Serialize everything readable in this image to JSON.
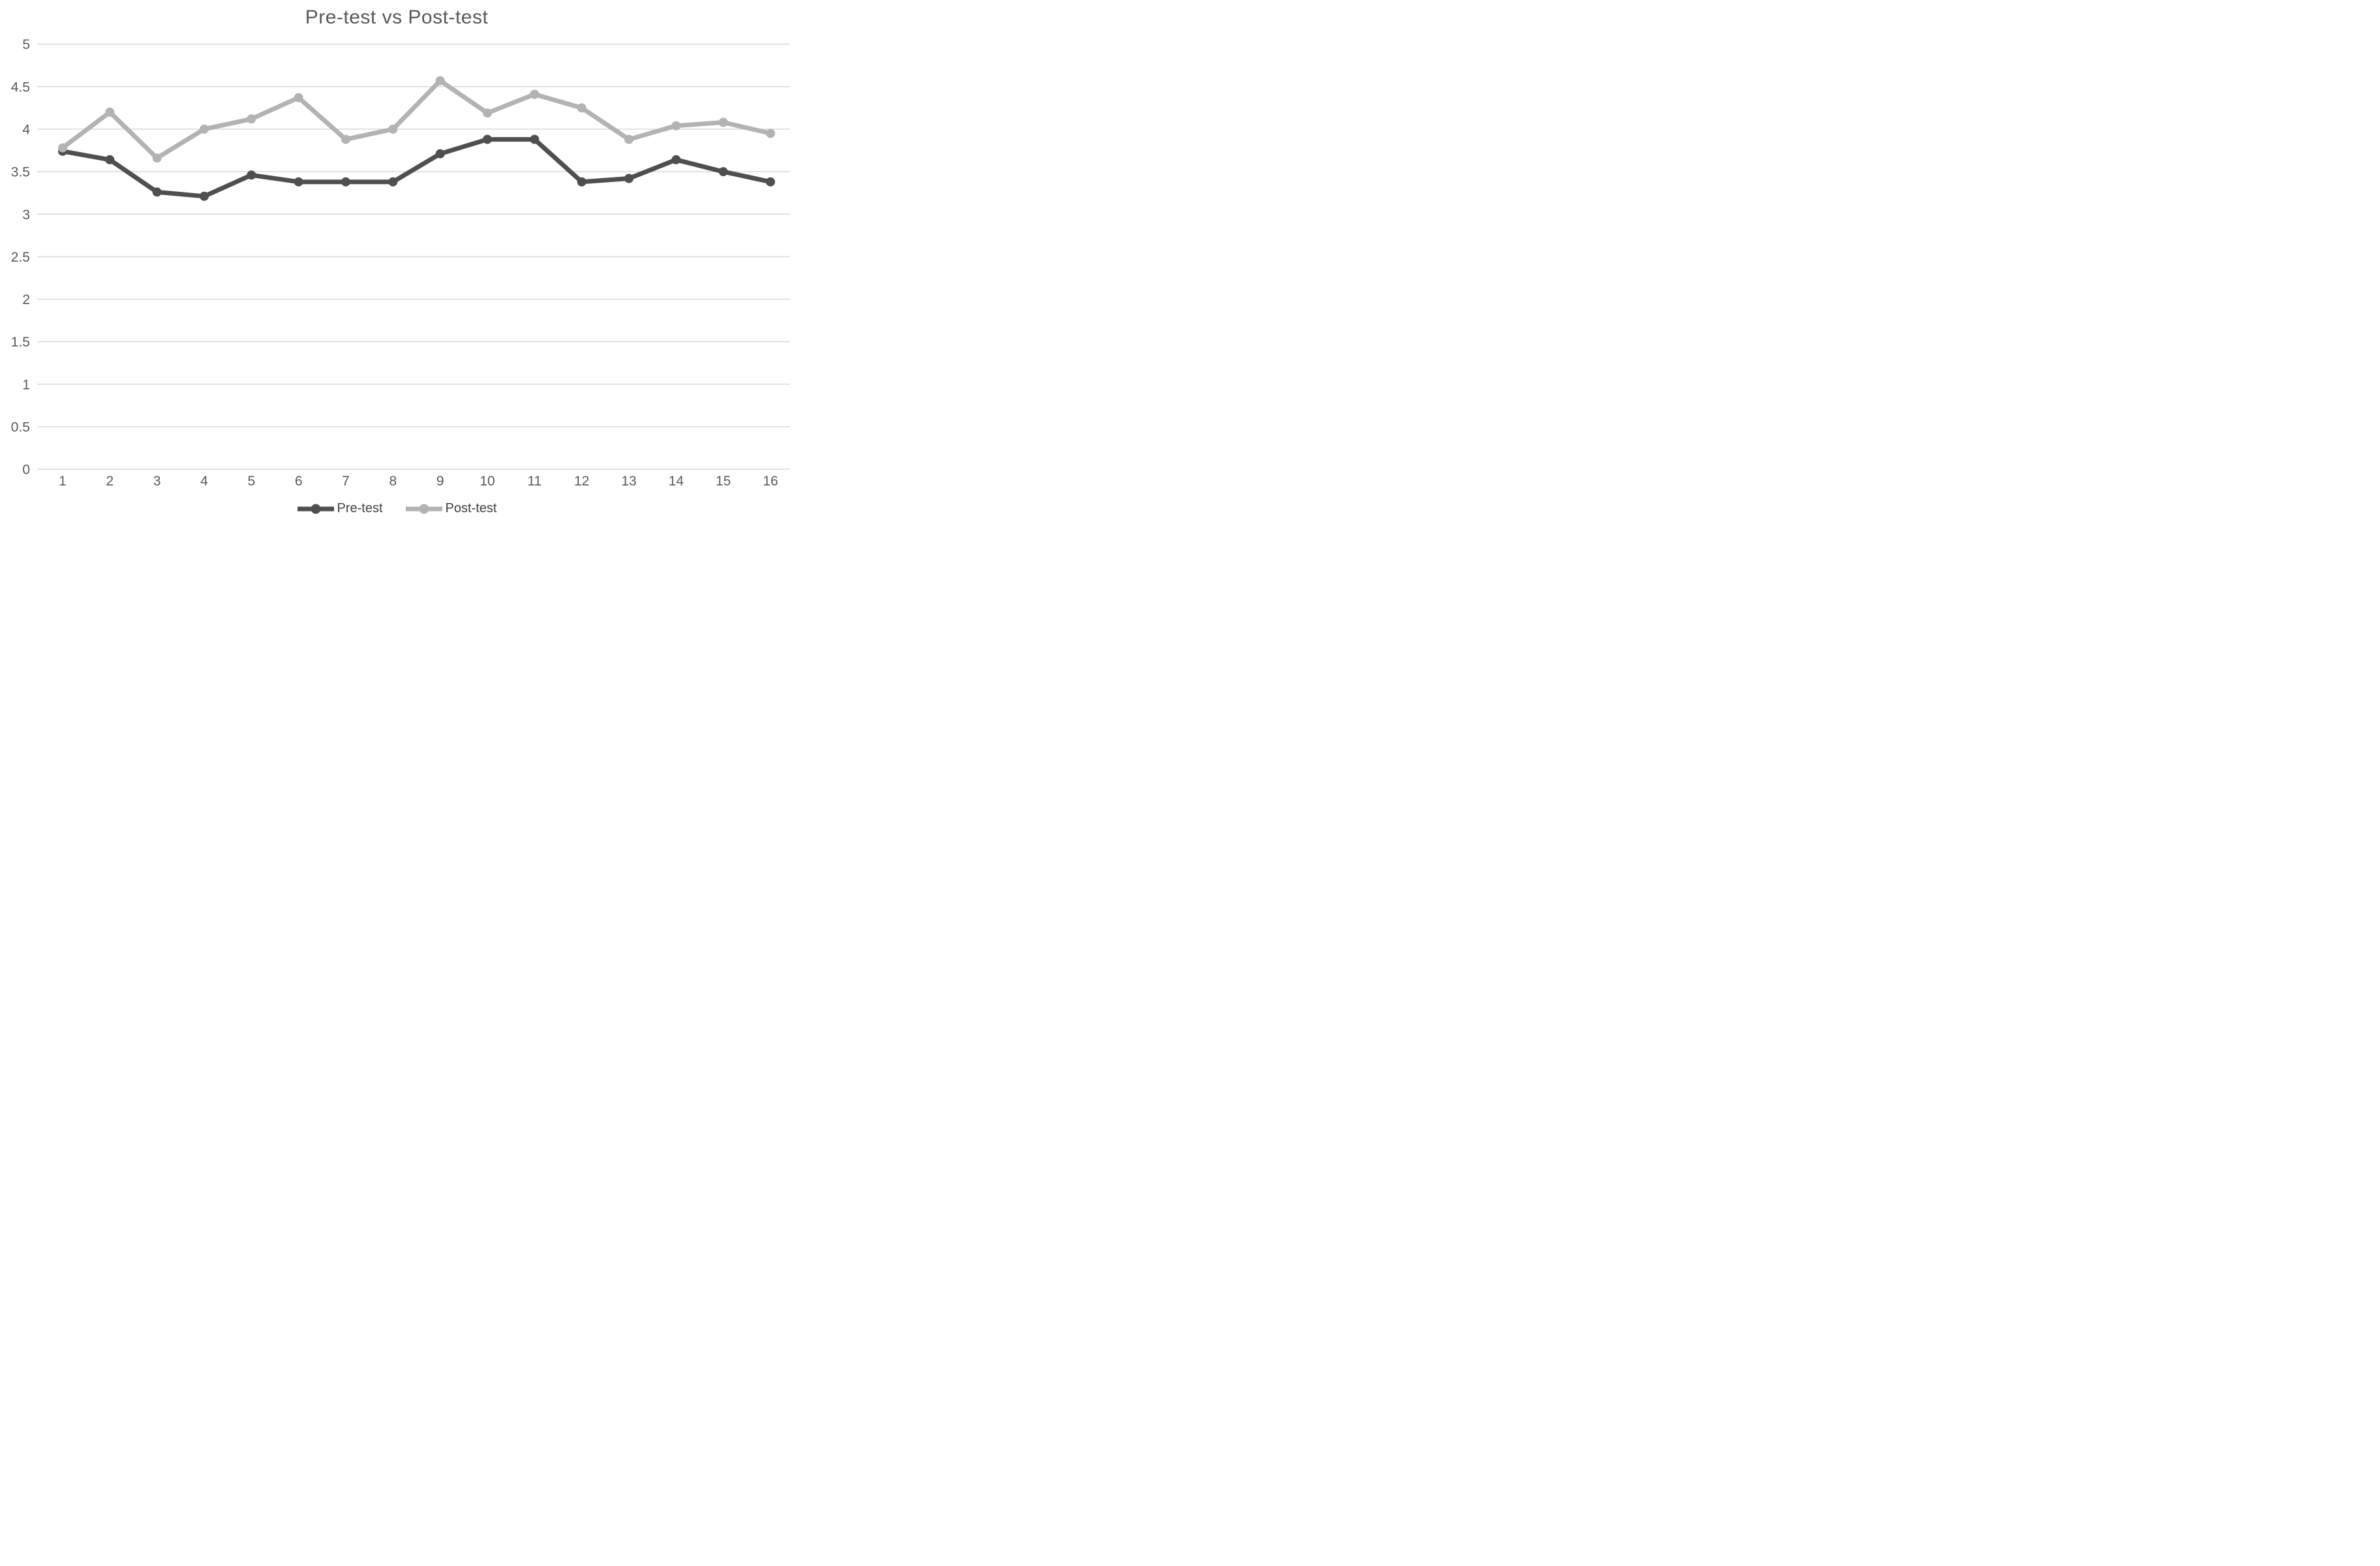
{
  "page": {
    "background": "#FFFFFF"
  },
  "chart_data": {
    "type": "line",
    "title": "Pre-test vs Post-test",
    "title_color": "#595959",
    "x": [
      1,
      2,
      3,
      4,
      5,
      6,
      7,
      8,
      9,
      10,
      11,
      12,
      13,
      14,
      15,
      16
    ],
    "series": [
      {
        "name": "Pre-test",
        "color": "#4F4F4F",
        "values": [
          3.74,
          3.64,
          3.26,
          3.21,
          3.46,
          3.38,
          3.38,
          3.38,
          3.71,
          3.88,
          3.88,
          3.38,
          3.42,
          3.64,
          3.5,
          3.38
        ]
      },
      {
        "name": "Post-test",
        "color": "#B3B3B3",
        "values": [
          3.78,
          4.2,
          3.66,
          4.0,
          4.12,
          4.37,
          3.88,
          4.0,
          4.57,
          4.19,
          4.41,
          4.25,
          3.88,
          4.04,
          4.08,
          3.95
        ]
      }
    ],
    "ylim": [
      0,
      5
    ],
    "yticks": [
      0,
      0.5,
      1,
      1.5,
      2,
      2.5,
      3,
      3.5,
      4,
      4.5,
      5
    ],
    "xlabel": "",
    "ylabel": "",
    "grid": "horizontal",
    "gridline_color": "#D9D9D9",
    "tick_label_color": "#595959",
    "legend_position": "bottom",
    "legend_text_color": "#404040"
  }
}
